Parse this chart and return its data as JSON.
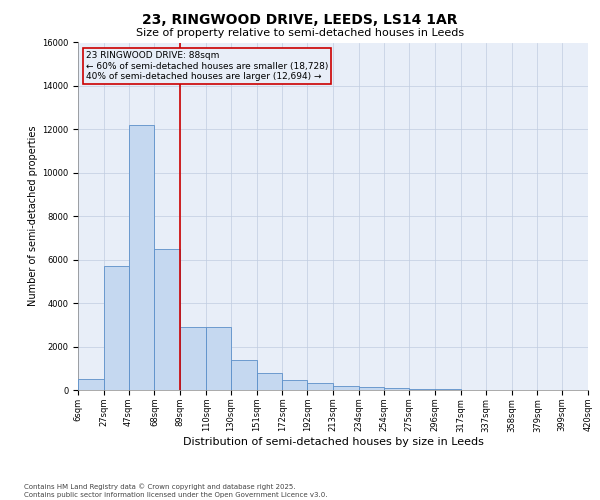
{
  "title": "23, RINGWOOD DRIVE, LEEDS, LS14 1AR",
  "subtitle": "Size of property relative to semi-detached houses in Leeds",
  "xlabel": "Distribution of semi-detached houses by size in Leeds",
  "ylabel": "Number of semi-detached properties",
  "annotation_line1": "23 RINGWOOD DRIVE: 88sqm",
  "annotation_line2": "← 60% of semi-detached houses are smaller (18,728)",
  "annotation_line3": "40% of semi-detached houses are larger (12,694) →",
  "footer1": "Contains HM Land Registry data © Crown copyright and database right 2025.",
  "footer2": "Contains public sector information licensed under the Open Government Licence v3.0.",
  "bin_edges": [
    6,
    27,
    47,
    68,
    89,
    110,
    130,
    151,
    172,
    192,
    213,
    234,
    254,
    275,
    296,
    317,
    337,
    358,
    379,
    399,
    420
  ],
  "bin_labels": [
    "6sqm",
    "27sqm",
    "47sqm",
    "68sqm",
    "89sqm",
    "110sqm",
    "130sqm",
    "151sqm",
    "172sqm",
    "192sqm",
    "213sqm",
    "234sqm",
    "254sqm",
    "275sqm",
    "296sqm",
    "317sqm",
    "337sqm",
    "358sqm",
    "379sqm",
    "399sqm",
    "420sqm"
  ],
  "bar_heights": [
    500,
    5700,
    12200,
    6500,
    2900,
    2900,
    1400,
    800,
    450,
    300,
    200,
    120,
    80,
    50,
    30,
    20,
    10,
    5,
    3,
    2
  ],
  "bar_color": "#c5d8f0",
  "bar_edge_color": "#5b8fc9",
  "vline_color": "#cc0000",
  "annotation_box_edge_color": "#cc0000",
  "ylim": [
    0,
    16000
  ],
  "yticks": [
    0,
    2000,
    4000,
    6000,
    8000,
    10000,
    12000,
    14000,
    16000
  ],
  "background_color": "#ffffff",
  "plot_bg_color": "#e8eef8",
  "grid_color": "#c0cce0",
  "title_fontsize": 10,
  "subtitle_fontsize": 8,
  "tick_fontsize": 6,
  "ylabel_fontsize": 7,
  "xlabel_fontsize": 8,
  "footer_fontsize": 5,
  "annot_fontsize": 6.5
}
